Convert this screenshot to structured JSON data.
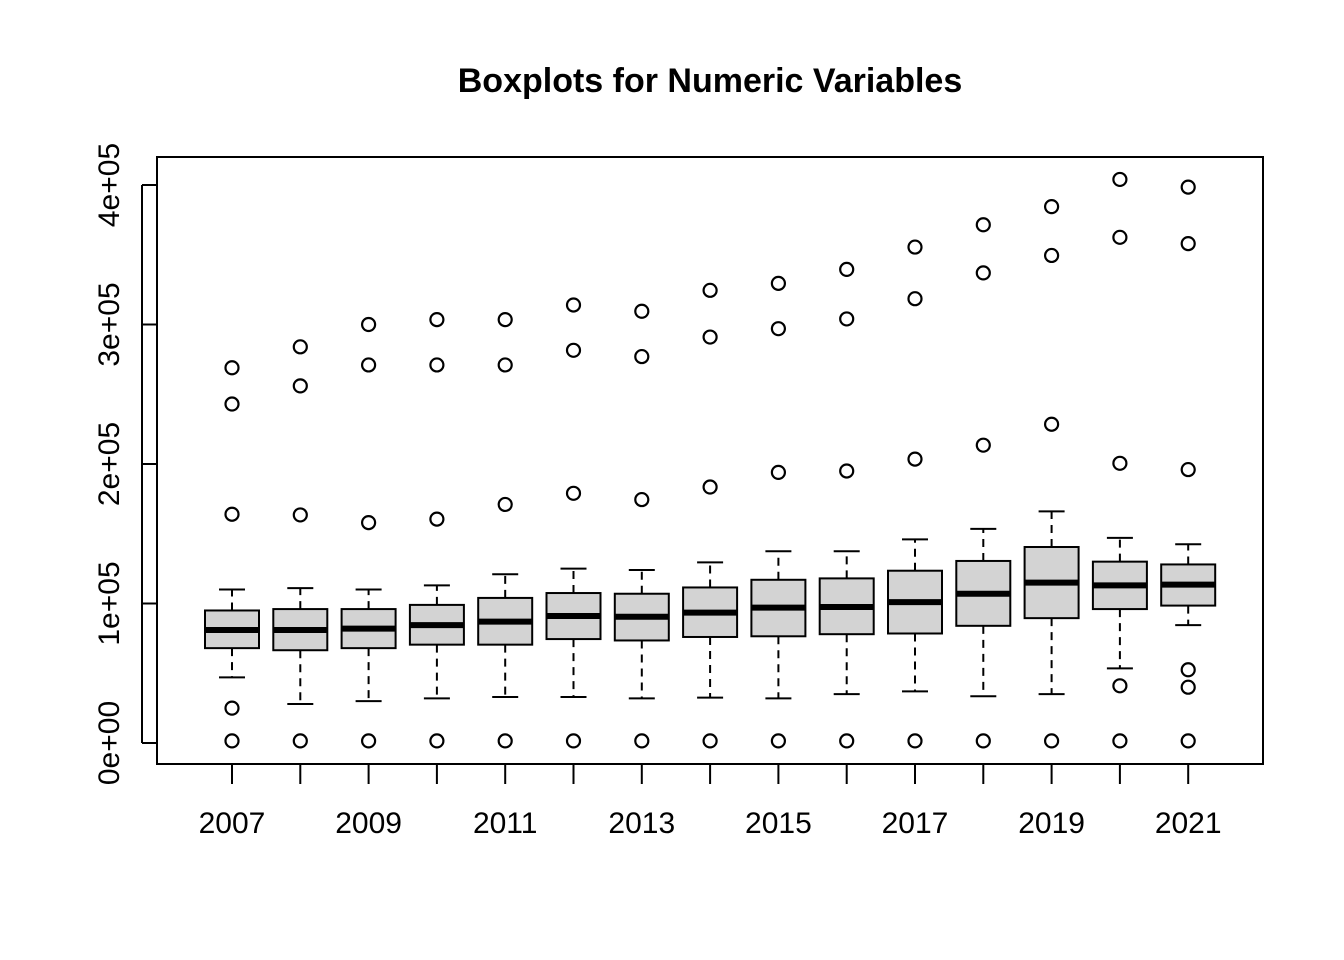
{
  "chart_data": {
    "type": "boxplot",
    "title": "Boxplots for Numeric Variables",
    "xlabel": "",
    "ylabel": "",
    "categories": [
      "2007",
      "2008",
      "2009",
      "2010",
      "2011",
      "2012",
      "2013",
      "2014",
      "2015",
      "2016",
      "2017",
      "2018",
      "2019",
      "2020",
      "2021"
    ],
    "x_tick_labels": [
      "2007",
      "2009",
      "2011",
      "2013",
      "2015",
      "2017",
      "2019",
      "2021"
    ],
    "y_ticks": [
      0,
      100000,
      200000,
      300000,
      400000
    ],
    "y_tick_labels": [
      "0e+00",
      "1e+05",
      "2e+05",
      "3e+05",
      "4e+05"
    ],
    "ylim": [
      -15000,
      420000
    ],
    "grid": false,
    "box_fill": "#d3d3d3",
    "series": [
      {
        "category": "2007",
        "whisker_low": 47000,
        "q1": 68000,
        "median": 81000,
        "q3": 95000,
        "whisker_high": 110000,
        "outliers": [
          1500,
          25000,
          164000,
          243000,
          269000
        ]
      },
      {
        "category": "2008",
        "whisker_low": 28000,
        "q1": 66500,
        "median": 81000,
        "q3": 96000,
        "whisker_high": 111000,
        "outliers": [
          1500,
          163500,
          256000,
          284000
        ]
      },
      {
        "category": "2009",
        "whisker_low": 30000,
        "q1": 68000,
        "median": 82000,
        "q3": 96000,
        "whisker_high": 110000,
        "outliers": [
          1500,
          158000,
          271000,
          300000
        ]
      },
      {
        "category": "2010",
        "whisker_low": 32000,
        "q1": 70500,
        "median": 84500,
        "q3": 99000,
        "whisker_high": 113000,
        "outliers": [
          1500,
          160500,
          271000,
          303500
        ]
      },
      {
        "category": "2011",
        "whisker_low": 33000,
        "q1": 70500,
        "median": 87000,
        "q3": 104000,
        "whisker_high": 121000,
        "outliers": [
          1500,
          171000,
          271000,
          303500
        ]
      },
      {
        "category": "2012",
        "whisker_low": 33000,
        "q1": 74500,
        "median": 91000,
        "q3": 107500,
        "whisker_high": 125000,
        "outliers": [
          1500,
          179000,
          281500,
          314000
        ]
      },
      {
        "category": "2013",
        "whisker_low": 32000,
        "q1": 73500,
        "median": 90500,
        "q3": 107000,
        "whisker_high": 124000,
        "outliers": [
          1500,
          174500,
          277000,
          309500
        ]
      },
      {
        "category": "2014",
        "whisker_low": 32500,
        "q1": 76000,
        "median": 93500,
        "q3": 111500,
        "whisker_high": 129500,
        "outliers": [
          1500,
          183500,
          291000,
          324500
        ]
      },
      {
        "category": "2015",
        "whisker_low": 32000,
        "q1": 76500,
        "median": 97000,
        "q3": 117000,
        "whisker_high": 137500,
        "outliers": [
          1500,
          194000,
          297000,
          329500
        ]
      },
      {
        "category": "2016",
        "whisker_low": 35000,
        "q1": 78000,
        "median": 97500,
        "q3": 118000,
        "whisker_high": 137500,
        "outliers": [
          1500,
          195000,
          304000,
          339500
        ]
      },
      {
        "category": "2017",
        "whisker_low": 37000,
        "q1": 78500,
        "median": 101000,
        "q3": 123500,
        "whisker_high": 146000,
        "outliers": [
          1500,
          203500,
          318500,
          355500
        ]
      },
      {
        "category": "2018",
        "whisker_low": 33500,
        "q1": 84000,
        "median": 107000,
        "q3": 130500,
        "whisker_high": 153500,
        "outliers": [
          1500,
          213500,
          337000,
          371500
        ]
      },
      {
        "category": "2019",
        "whisker_low": 35000,
        "q1": 89500,
        "median": 115000,
        "q3": 140500,
        "whisker_high": 166000,
        "outliers": [
          1500,
          228500,
          349500,
          384500
        ]
      },
      {
        "category": "2020",
        "whisker_low": 53500,
        "q1": 96000,
        "median": 113000,
        "q3": 130000,
        "whisker_high": 147000,
        "outliers": [
          1500,
          41000,
          200500,
          362500,
          404000
        ]
      },
      {
        "category": "2021",
        "whisker_low": 84500,
        "q1": 98500,
        "median": 113500,
        "q3": 128000,
        "whisker_high": 142500,
        "outliers": [
          1500,
          40000,
          52500,
          196000,
          358000,
          398500
        ]
      }
    ]
  }
}
